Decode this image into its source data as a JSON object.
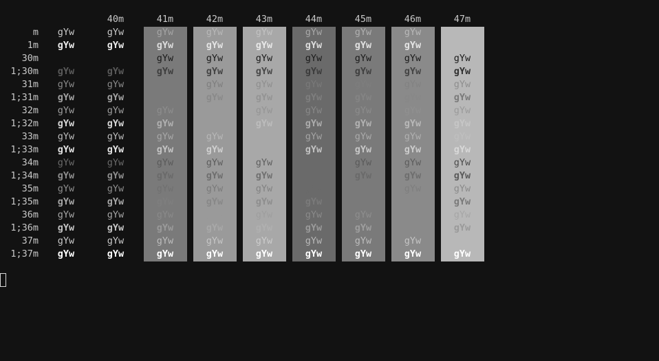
{
  "terminal": {
    "background": "#121212",
    "columns": [
      "",
      "40m",
      "41m",
      "42m",
      "43m",
      "44m",
      "45m",
      "46m",
      "47m"
    ],
    "column_backgrounds": [
      "",
      "",
      "#7a7a7a",
      "#9a9a9a",
      "#a8a8a8",
      "#6a6a6a",
      "#7a7a7a",
      "#8a8a8a",
      "#b8b8b8"
    ],
    "sample_text": "gYw",
    "rows": [
      {
        "label": "m",
        "bold": false,
        "colors": [
          "#c8c8c8",
          "#c8c8c8",
          "#a5a5a5",
          "#b8b8b8",
          "#c2c2c2",
          "#a8a8a8",
          "#b0b0b0",
          "#b8b8b8",
          ""
        ]
      },
      {
        "label": "1m",
        "bold": true,
        "colors": [
          "#ececec",
          "#ececec",
          "#dddddd",
          "#e4e4e4",
          "#e8e8e8",
          "#dcdcdc",
          "#e0e0e0",
          "#e4e4e4",
          ""
        ]
      },
      {
        "label": "30m",
        "bold": false,
        "colors": [
          "",
          "",
          "#1a1a1a",
          "#1a1a1a",
          "#1a1a1a",
          "#1a1a1a",
          "#1a1a1a",
          "#1a1a1a",
          "#1a1a1a"
        ]
      },
      {
        "label": "1;30m",
        "bold": true,
        "colors": [
          "#5a5a5a",
          "#5a5a5a",
          "#3e3e3e",
          "#444444",
          "#484848",
          "#3c3c3c",
          "#404040",
          "#444444",
          "#303030"
        ]
      },
      {
        "label": "31m",
        "bold": false,
        "colors": [
          "#8a8a8a",
          "#8a8a8a",
          "",
          "#7e7e7e",
          "#8e8e8e",
          "#7a7a7a",
          "#7e7e7e",
          "#828282",
          "#8e8e8e"
        ]
      },
      {
        "label": "1;31m",
        "bold": true,
        "colors": [
          "#a2a2a2",
          "#a2a2a2",
          "",
          "#8a8a8a",
          "#949494",
          "#7e7e7e",
          "#848484",
          "#888888",
          "#7a7a7a"
        ]
      },
      {
        "label": "32m",
        "bold": false,
        "colors": [
          "#9e9e9e",
          "#9e9e9e",
          "#8e8e8e",
          "",
          "#949494",
          "#888888",
          "#8c8c8c",
          "#909090",
          "#9a9a9a"
        ]
      },
      {
        "label": "1;32m",
        "bold": true,
        "colors": [
          "#d6d6d6",
          "#d6d6d6",
          "#b0b0b0",
          "",
          "#bcbcbc",
          "#acacac",
          "#b2b2b2",
          "#b8b8b8",
          "#c6c6c6"
        ]
      },
      {
        "label": "33m",
        "bold": false,
        "colors": [
          "#bdbdbd",
          "#bdbdbd",
          "#a8a8a8",
          "#b8b8b8",
          "",
          "#a4a4a4",
          "#aaaaaa",
          "#b0b0b0",
          "#c0c0c0"
        ]
      },
      {
        "label": "1;33m",
        "bold": true,
        "colors": [
          "#e2e2e2",
          "#e2e2e2",
          "#c4c4c4",
          "#cfcfcf",
          "",
          "#c2c2c2",
          "#c8c8c8",
          "#cccccc",
          "#d8d8d8"
        ]
      },
      {
        "label": "34m",
        "bold": false,
        "colors": [
          "#6a6a6a",
          "#6a6a6a",
          "#5a5a5a",
          "#5c5c5c",
          "#5e5e5e",
          "",
          "#5a5a5a",
          "#5c5c5c",
          "#4a4a4a"
        ]
      },
      {
        "label": "1;34m",
        "bold": true,
        "colors": [
          "#8e8e8e",
          "#8e8e8e",
          "#6a6a6a",
          "#6e6e6e",
          "#707070",
          "",
          "#6a6a6a",
          "#6e6e6e",
          "#5a5a5a"
        ]
      },
      {
        "label": "35m",
        "bold": false,
        "colors": [
          "#8e8e8e",
          "#8e8e8e",
          "#707070",
          "#7a7a7a",
          "#828282",
          "#6a6a6a",
          "",
          "#7e7e7e",
          "#8a8a8a"
        ]
      },
      {
        "label": "1;35m",
        "bold": true,
        "colors": [
          "#a6a6a6",
          "#a6a6a6",
          "#7e7e7e",
          "#888888",
          "#8e8e8e",
          "#7a7a7a",
          "",
          "#8a8a8a",
          "#7a7a7a"
        ]
      },
      {
        "label": "36m",
        "bold": false,
        "colors": [
          "#a6a6a6",
          "#a6a6a6",
          "#8a8a8a",
          "#9a9a9a",
          "#9e9e9e",
          "#8a8a8a",
          "#8e8e8e",
          "",
          "#a6a6a6"
        ]
      },
      {
        "label": "1;36m",
        "bold": true,
        "colors": [
          "#c4c4c4",
          "#c4c4c4",
          "#9a9a9a",
          "#a8a8a8",
          "#b0b0b0",
          "#9a9a9a",
          "#9e9e9e",
          "",
          "#9a9a9a"
        ]
      },
      {
        "label": "37m",
        "bold": false,
        "colors": [
          "#c8c8c8",
          "#c8c8c8",
          "#bcbcbc",
          "#c6c6c6",
          "#cccccc",
          "#b8b8b8",
          "#bcbcbc",
          "#c4c4c4",
          ""
        ]
      },
      {
        "label": "1;37m",
        "bold": true,
        "colors": [
          "#ffffff",
          "#ffffff",
          "#ffffff",
          "#ffffff",
          "#ffffff",
          "#ffffff",
          "#ffffff",
          "#ffffff",
          "#ffffff"
        ]
      }
    ]
  }
}
